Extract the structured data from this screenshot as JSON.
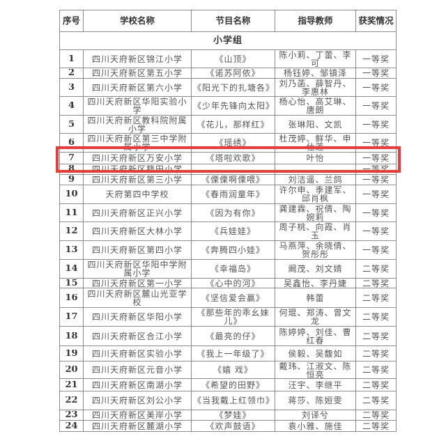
{
  "headers": [
    "序号",
    "学校名称",
    "节目名称",
    "指导教师",
    "获奖情况"
  ],
  "group": "小学组",
  "highlight_color": "#f03a3a",
  "rows": [
    [
      "1",
      "四川天府新区锦江小学",
      "《山顶》",
      "陈小莉、丁蕾、李可",
      "一等奖"
    ],
    [
      "2",
      "四川天府新区第五小学",
      "《诺苏阿依》",
      "杨钰婷、邹镇泽",
      "一等奖"
    ],
    [
      "3",
      "四川天府新区第六小学",
      "《阳光下的扎塘各》",
      "刘乃菡、薛智丹、李惠林",
      "一等奖"
    ],
    [
      "4",
      "四川天府新区华阳实验小学",
      "《少年先锋向太阳》",
      "杨心怡、高艾琳、唐朗",
      "一等奖"
    ],
    [
      "5",
      "四川天府新区教科院附属小学",
      "《花儿，那样红》",
      "张琳阳、文凯",
      "一等奖"
    ],
    [
      "6",
      "四川天府新区第三中学附属小学",
      "《瑶绣》",
      "杜茂婷、鲜华、申仕莲",
      "一等奖"
    ],
    [
      "7",
      "四川天府新区万安小学",
      "《塔啦欢歌》",
      "叶怡",
      "一等奖"
    ],
    [
      "8",
      "四川天府新区籍田小学",
      "",
      "",
      "一等奖"
    ],
    [
      "9",
      "四川天府新区第三小学",
      "《傈傈啊傈喂》",
      "刘洁遥、兰鸽",
      "一等奖"
    ],
    [
      "10",
      "天府第四中学校",
      "《春雨润童年》",
      "许尔申、季建军、邱肖枫",
      "一等奖"
    ],
    [
      "11",
      "四川天府新区正兴小学",
      "《因为有你》",
      "龚建霖、祝倩、陶婉莉",
      "一等奖"
    ],
    [
      "12",
      "四川天府新区大林小学",
      "《兵娃娃》",
      "周子桃、向霞、肖玉",
      "一等奖"
    ],
    [
      "13",
      "四川天府新区第四小学",
      "《奔腾四小娃》",
      "马燕萍、余晓倩、贺彤彤",
      "一等奖"
    ],
    [
      "14",
      "四川天府新区华阳中学附属小学",
      "《幸福岛》",
      "阚茂、刘文婧",
      "二等奖"
    ],
    [
      "15",
      "四川天府新区第一小学",
      "《心中的河》",
      "吴鑫怡、李丹婕",
      "二等奖"
    ],
    [
      "16",
      "四川天府新区麓山光亚学校",
      "《坚信爱会赢》",
      "韩蕾",
      "二等奖"
    ],
    [
      "17",
      "四川天府新区华阳小学",
      "《那些年的乖幺妹儿》",
      "何琨、郑涛、曾文龙",
      "二等奖"
    ],
    [
      "18",
      "四川天府新区合江小学",
      "《最亮的仔》",
      "陈婷婷、刘佳、曹红春",
      "二等奖"
    ],
    [
      "19",
      "四川天府新区实验小学",
      "《我上一年级了》",
      "侯毅、吴馥如",
      "二等奖"
    ],
    [
      "20",
      "四川天府新区元音小学",
      "《嬉 戏》",
      "戴玮、江淑文、陈恒亮",
      "二等奖"
    ],
    [
      "21",
      "四川天府新区南湖小学",
      "《希望的田野》",
      "汪宇、李继平",
      "二等奖"
    ],
    [
      "22",
      "四川天府新区刘公小学",
      "《当我戴上红领巾》",
      "蒋莎、陈姮雯",
      "二等奖"
    ],
    [
      "23",
      "四川天府新区美岸小学",
      "《梦娃》",
      "刘译兮",
      "二等奖"
    ],
    [
      "24",
      "四川天府新区麓湖小学",
      "《欢声鼓语》",
      "袁小雅、施佳",
      "二等奖"
    ]
  ]
}
